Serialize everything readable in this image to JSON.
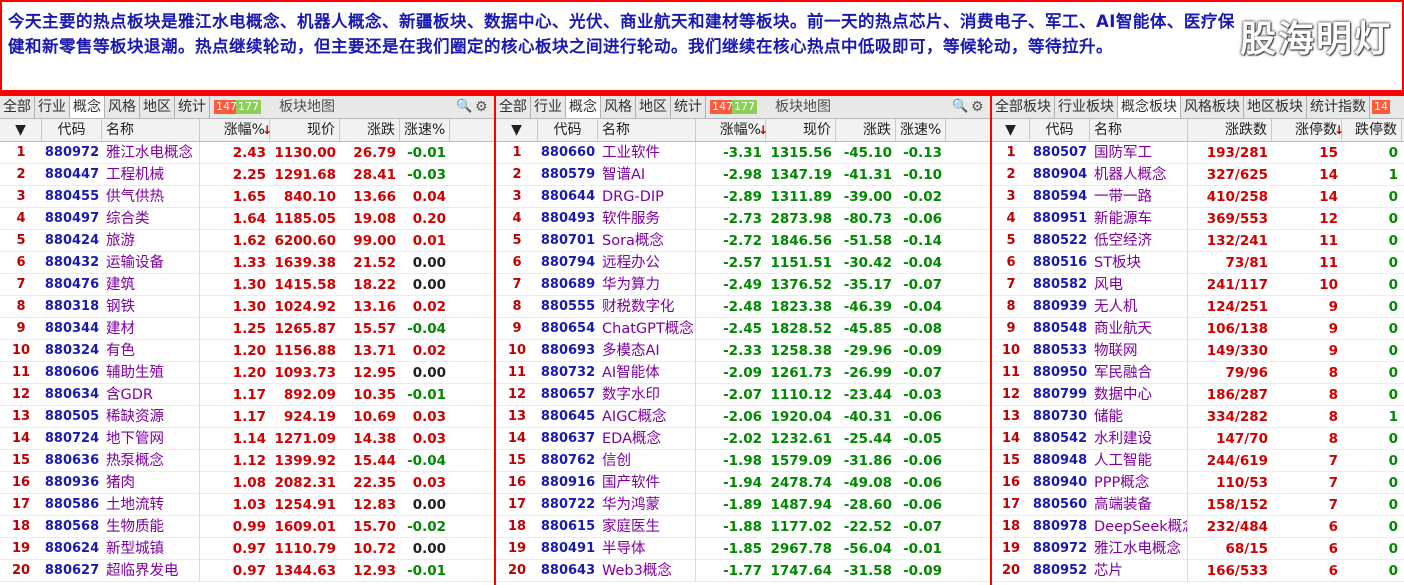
{
  "notice": {
    "text": "今天主要的热点板块是雅江水电概念、机器人概念、新疆板块、数据中心、光伏、商业航天和建材等板块。前一天的热点芯片、消费电子、军工、AI智能体、医疗保健和新零售等板块退潮。热点继续轮动，但主要还是在我们圈定的核心板块之间进行轮动。我们继续在核心热点中低吸即可，等候轮动，等待拉升。",
    "watermark": "股海明灯"
  },
  "colors": {
    "accent": "#ff0000",
    "up": "#d00000",
    "down": "#008800",
    "code": "#1a1ab0",
    "name": "#8000a0"
  },
  "left": {
    "tabs": [
      "全部",
      "行业",
      "概念",
      "风格",
      "地区",
      "统计"
    ],
    "active_tab": 2,
    "up_count": "147",
    "down_count": "177",
    "map_label": "板块地图",
    "headers": {
      "sel": "▼",
      "code": "代码",
      "name": "名称",
      "pct": "涨幅%",
      "price": "现价",
      "chg": "涨跌",
      "speed": "涨速%"
    },
    "rows": [
      {
        "n": "1",
        "code": "880972",
        "name": "雅江水电概念",
        "pct": "2.43",
        "price": "1130.00",
        "chg": "26.79",
        "speed": "-0.01"
      },
      {
        "n": "2",
        "code": "880447",
        "name": "工程机械",
        "pct": "2.25",
        "price": "1291.68",
        "chg": "28.41",
        "speed": "-0.03"
      },
      {
        "n": "3",
        "code": "880455",
        "name": "供气供热",
        "pct": "1.65",
        "price": "840.10",
        "chg": "13.66",
        "speed": "0.04"
      },
      {
        "n": "4",
        "code": "880497",
        "name": "综合类",
        "pct": "1.64",
        "price": "1185.05",
        "chg": "19.08",
        "speed": "0.20"
      },
      {
        "n": "5",
        "code": "880424",
        "name": "旅游",
        "pct": "1.62",
        "price": "6200.60",
        "chg": "99.00",
        "speed": "0.01"
      },
      {
        "n": "6",
        "code": "880432",
        "name": "运输设备",
        "pct": "1.33",
        "price": "1639.38",
        "chg": "21.52",
        "speed": "0.00"
      },
      {
        "n": "7",
        "code": "880476",
        "name": "建筑",
        "pct": "1.30",
        "price": "1415.58",
        "chg": "18.22",
        "speed": "0.00"
      },
      {
        "n": "8",
        "code": "880318",
        "name": "钢铁",
        "pct": "1.30",
        "price": "1024.92",
        "chg": "13.16",
        "speed": "0.02"
      },
      {
        "n": "9",
        "code": "880344",
        "name": "建材",
        "pct": "1.25",
        "price": "1265.87",
        "chg": "15.57",
        "speed": "-0.04"
      },
      {
        "n": "10",
        "code": "880324",
        "name": "有色",
        "pct": "1.20",
        "price": "1156.88",
        "chg": "13.71",
        "speed": "0.02"
      },
      {
        "n": "11",
        "code": "880606",
        "name": "辅助生殖",
        "pct": "1.20",
        "price": "1093.73",
        "chg": "12.95",
        "speed": "0.00"
      },
      {
        "n": "12",
        "code": "880634",
        "name": "含GDR",
        "pct": "1.17",
        "price": "892.09",
        "chg": "10.35",
        "speed": "-0.01"
      },
      {
        "n": "13",
        "code": "880505",
        "name": "稀缺资源",
        "pct": "1.17",
        "price": "924.19",
        "chg": "10.69",
        "speed": "0.03"
      },
      {
        "n": "14",
        "code": "880724",
        "name": "地下管网",
        "pct": "1.14",
        "price": "1271.09",
        "chg": "14.38",
        "speed": "0.03"
      },
      {
        "n": "15",
        "code": "880636",
        "name": "热泵概念",
        "pct": "1.12",
        "price": "1399.92",
        "chg": "15.44",
        "speed": "-0.04"
      },
      {
        "n": "16",
        "code": "880936",
        "name": "猪肉",
        "pct": "1.08",
        "price": "2082.31",
        "chg": "22.35",
        "speed": "0.03"
      },
      {
        "n": "17",
        "code": "880586",
        "name": "土地流转",
        "pct": "1.03",
        "price": "1254.91",
        "chg": "12.83",
        "speed": "0.00"
      },
      {
        "n": "18",
        "code": "880568",
        "name": "生物质能",
        "pct": "0.99",
        "price": "1609.01",
        "chg": "15.70",
        "speed": "-0.02"
      },
      {
        "n": "19",
        "code": "880624",
        "name": "新型城镇",
        "pct": "0.97",
        "price": "1110.79",
        "chg": "10.72",
        "speed": "0.00"
      },
      {
        "n": "20",
        "code": "880627",
        "name": "超临界发电",
        "pct": "0.97",
        "price": "1344.63",
        "chg": "12.93",
        "speed": "-0.01"
      }
    ]
  },
  "mid": {
    "tabs": [
      "全部",
      "行业",
      "概念",
      "风格",
      "地区",
      "统计"
    ],
    "active_tab": 2,
    "up_count": "147",
    "down_count": "177",
    "map_label": "板块地图",
    "headers": {
      "sel": "▼",
      "code": "代码",
      "name": "名称",
      "pct": "涨幅%",
      "price": "现价",
      "chg": "涨跌",
      "speed": "涨速%"
    },
    "rows": [
      {
        "n": "1",
        "code": "880660",
        "name": "工业软件",
        "pct": "-3.31",
        "price": "1315.56",
        "chg": "-45.10",
        "speed": "-0.13"
      },
      {
        "n": "2",
        "code": "880579",
        "name": "智谱AI",
        "pct": "-2.98",
        "price": "1347.19",
        "chg": "-41.31",
        "speed": "-0.10"
      },
      {
        "n": "3",
        "code": "880644",
        "name": "DRG-DIP",
        "pct": "-2.89",
        "price": "1311.89",
        "chg": "-39.00",
        "speed": "-0.02"
      },
      {
        "n": "4",
        "code": "880493",
        "name": "软件服务",
        "pct": "-2.73",
        "price": "2873.98",
        "chg": "-80.73",
        "speed": "-0.06"
      },
      {
        "n": "5",
        "code": "880701",
        "name": "Sora概念",
        "pct": "-2.72",
        "price": "1846.56",
        "chg": "-51.58",
        "speed": "-0.14"
      },
      {
        "n": "6",
        "code": "880794",
        "name": "远程办公",
        "pct": "-2.57",
        "price": "1151.51",
        "chg": "-30.42",
        "speed": "-0.04"
      },
      {
        "n": "7",
        "code": "880689",
        "name": "华为算力",
        "pct": "-2.49",
        "price": "1376.52",
        "chg": "-35.17",
        "speed": "-0.07"
      },
      {
        "n": "8",
        "code": "880555",
        "name": "财税数字化",
        "pct": "-2.48",
        "price": "1823.38",
        "chg": "-46.39",
        "speed": "-0.04"
      },
      {
        "n": "9",
        "code": "880654",
        "name": "ChatGPT概念",
        "pct": "-2.45",
        "price": "1828.52",
        "chg": "-45.85",
        "speed": "-0.08"
      },
      {
        "n": "10",
        "code": "880693",
        "name": "多模态AI",
        "pct": "-2.33",
        "price": "1258.38",
        "chg": "-29.96",
        "speed": "-0.09"
      },
      {
        "n": "11",
        "code": "880732",
        "name": "AI智能体",
        "pct": "-2.09",
        "price": "1261.73",
        "chg": "-26.99",
        "speed": "-0.07"
      },
      {
        "n": "12",
        "code": "880657",
        "name": "数字水印",
        "pct": "-2.07",
        "price": "1110.12",
        "chg": "-23.44",
        "speed": "-0.03"
      },
      {
        "n": "13",
        "code": "880645",
        "name": "AIGC概念",
        "pct": "-2.06",
        "price": "1920.04",
        "chg": "-40.31",
        "speed": "-0.06"
      },
      {
        "n": "14",
        "code": "880637",
        "name": "EDA概念",
        "pct": "-2.02",
        "price": "1232.61",
        "chg": "-25.44",
        "speed": "-0.05"
      },
      {
        "n": "15",
        "code": "880762",
        "name": "信创",
        "pct": "-1.98",
        "price": "1579.09",
        "chg": "-31.86",
        "speed": "-0.06"
      },
      {
        "n": "16",
        "code": "880916",
        "name": "国产软件",
        "pct": "-1.94",
        "price": "2478.74",
        "chg": "-49.08",
        "speed": "-0.06"
      },
      {
        "n": "17",
        "code": "880722",
        "name": "华为鸿蒙",
        "pct": "-1.89",
        "price": "1487.94",
        "chg": "-28.60",
        "speed": "-0.06"
      },
      {
        "n": "18",
        "code": "880615",
        "name": "家庭医生",
        "pct": "-1.88",
        "price": "1177.02",
        "chg": "-22.52",
        "speed": "-0.07"
      },
      {
        "n": "19",
        "code": "880491",
        "name": "半导体",
        "pct": "-1.85",
        "price": "2967.78",
        "chg": "-56.04",
        "speed": "-0.01"
      },
      {
        "n": "20",
        "code": "880643",
        "name": "Web3概念",
        "pct": "-1.77",
        "price": "1747.64",
        "chg": "-31.58",
        "speed": "-0.09"
      }
    ]
  },
  "right": {
    "tabs": [
      "全部板块",
      "行业板块",
      "概念板块",
      "风格板块",
      "地区板块",
      "统计指数"
    ],
    "active_tab": 2,
    "extra_tab": "14",
    "headers": {
      "sel": "▼",
      "code": "代码",
      "name": "名称",
      "updown": "涨跌数",
      "limitup": "涨停数",
      "limitdown": "跌停数"
    },
    "rows": [
      {
        "n": "1",
        "code": "880507",
        "name": "国防军工",
        "ud": "193/281",
        "lu": "15",
        "ld": "0"
      },
      {
        "n": "2",
        "code": "880904",
        "name": "机器人概念",
        "ud": "327/625",
        "lu": "14",
        "ld": "1"
      },
      {
        "n": "3",
        "code": "880594",
        "name": "一带一路",
        "ud": "410/258",
        "lu": "14",
        "ld": "0"
      },
      {
        "n": "4",
        "code": "880951",
        "name": "新能源车",
        "ud": "369/553",
        "lu": "12",
        "ld": "0"
      },
      {
        "n": "5",
        "code": "880522",
        "name": "低空经济",
        "ud": "132/241",
        "lu": "11",
        "ld": "0"
      },
      {
        "n": "6",
        "code": "880516",
        "name": "ST板块",
        "ud": "73/81",
        "lu": "11",
        "ld": "0"
      },
      {
        "n": "7",
        "code": "880582",
        "name": "风电",
        "ud": "241/117",
        "lu": "10",
        "ld": "0"
      },
      {
        "n": "8",
        "code": "880939",
        "name": "无人机",
        "ud": "124/251",
        "lu": "9",
        "ld": "0"
      },
      {
        "n": "9",
        "code": "880548",
        "name": "商业航天",
        "ud": "106/138",
        "lu": "9",
        "ld": "0"
      },
      {
        "n": "10",
        "code": "880533",
        "name": "物联网",
        "ud": "149/330",
        "lu": "9",
        "ld": "0"
      },
      {
        "n": "11",
        "code": "880950",
        "name": "军民融合",
        "ud": "79/96",
        "lu": "8",
        "ld": "0"
      },
      {
        "n": "12",
        "code": "880799",
        "name": "数据中心",
        "ud": "186/287",
        "lu": "8",
        "ld": "0"
      },
      {
        "n": "13",
        "code": "880730",
        "name": "储能",
        "ud": "334/282",
        "lu": "8",
        "ld": "1"
      },
      {
        "n": "14",
        "code": "880542",
        "name": "水利建设",
        "ud": "147/70",
        "lu": "8",
        "ld": "0"
      },
      {
        "n": "15",
        "code": "880948",
        "name": "人工智能",
        "ud": "244/619",
        "lu": "7",
        "ld": "0"
      },
      {
        "n": "16",
        "code": "880940",
        "name": "PPP概念",
        "ud": "110/53",
        "lu": "7",
        "ld": "0"
      },
      {
        "n": "17",
        "code": "880560",
        "name": "高端装备",
        "ud": "158/152",
        "lu": "7",
        "ld": "0"
      },
      {
        "n": "18",
        "code": "880978",
        "name": "DeepSeek概念",
        "ud": "232/484",
        "lu": "6",
        "ld": "0"
      },
      {
        "n": "19",
        "code": "880972",
        "name": "雅江水电概念",
        "ud": "68/15",
        "lu": "6",
        "ld": "0"
      },
      {
        "n": "20",
        "code": "880952",
        "name": "芯片",
        "ud": "166/533",
        "lu": "6",
        "ld": "0"
      }
    ]
  }
}
